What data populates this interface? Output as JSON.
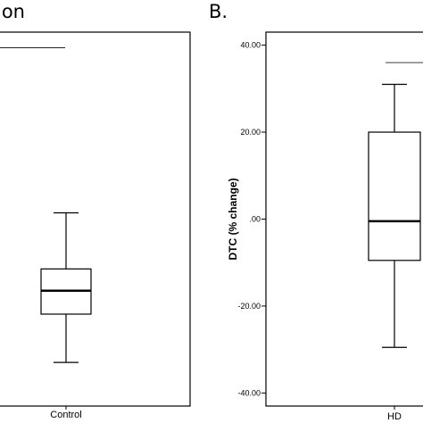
{
  "panel_titles": {
    "left": "ion",
    "right": "B."
  },
  "chart_data": [
    {
      "type": "box",
      "title": "",
      "xlabel": "",
      "ylabel": "",
      "categories": [
        "Control"
      ],
      "boxes": [
        {
          "category": "Control",
          "min": -29,
          "q1": -13.5,
          "median": -6,
          "q3": 1,
          "max": 19
        }
      ],
      "ylim": [
        -43,
        77
      ],
      "yticks": [],
      "significance_bar": 72
    },
    {
      "type": "box",
      "title": "",
      "xlabel": "",
      "ylabel": "DTC (% change)",
      "categories": [
        "HD"
      ],
      "boxes": [
        {
          "category": "HD",
          "min": -29.5,
          "q1": -9.5,
          "median": -0.5,
          "q3": 20,
          "max": 31
        }
      ],
      "ylim": [
        -43,
        43
      ],
      "yticks": [
        "40.00",
        "20.00",
        ".00",
        "-20.00",
        "-40.00"
      ],
      "significance_bar": 36
    }
  ]
}
